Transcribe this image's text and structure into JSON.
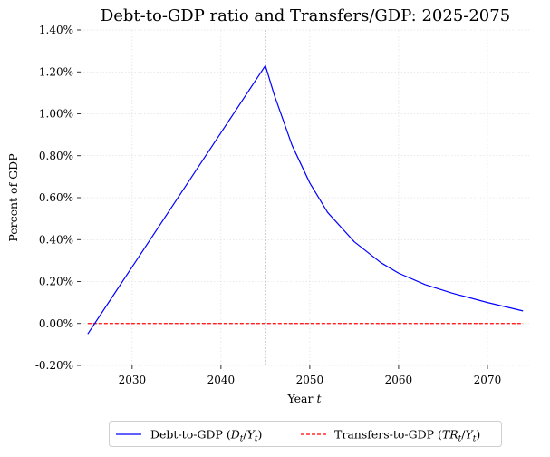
{
  "chart_data": {
    "type": "line",
    "title": "Debt-to-GDP ratio and Transfers/GDP: 2025-2075",
    "xlabel": "Year",
    "xlabel_var": "t",
    "ylabel": "Percent of GDP",
    "xlim": [
      2024.2,
      2074.8
    ],
    "ylim": [
      -0.2,
      1.4
    ],
    "x_ticks": [
      2030,
      2040,
      2050,
      2060,
      2070
    ],
    "y_ticks": [
      -0.2,
      0.0,
      0.2,
      0.4,
      0.6,
      0.8,
      1.0,
      1.2,
      1.4
    ],
    "y_tick_labels": [
      "-0.20%",
      "0.00%",
      "0.20%",
      "0.40%",
      "0.60%",
      "0.80%",
      "1.00%",
      "1.20%",
      "1.40%"
    ],
    "grid": true,
    "vline": {
      "x": 2045,
      "color": "#000000"
    },
    "legend_position": "below",
    "series": [
      {
        "name": "Debt-to-GDP (D_t/Y_t)",
        "legend_main": "Debt-to-GDP (",
        "legend_var1": "D",
        "legend_sub1": "t",
        "legend_sep": "/",
        "legend_var2": "Y",
        "legend_sub2": "t",
        "legend_close": ")",
        "color": "#0000ff",
        "style": "solid",
        "x": [
          2025,
          2030,
          2035,
          2040,
          2045,
          2046,
          2048,
          2050,
          2052,
          2055,
          2058,
          2060,
          2063,
          2066,
          2070,
          2074
        ],
        "y": [
          -0.05,
          0.27,
          0.59,
          0.91,
          1.23,
          1.09,
          0.85,
          0.67,
          0.53,
          0.39,
          0.29,
          0.24,
          0.185,
          0.145,
          0.1,
          0.06
        ]
      },
      {
        "name": "Transfers-to-GDP (TR_t/Y_t)",
        "legend_main": "Transfers-to-GDP (",
        "legend_var1": "TR",
        "legend_sub1": "t",
        "legend_sep": "/",
        "legend_var2": "Y",
        "legend_sub2": "t",
        "legend_close": ")",
        "color": "#ff0000",
        "style": "dashed",
        "x": [
          2025,
          2074
        ],
        "y": [
          0.0,
          0.0
        ]
      }
    ]
  }
}
